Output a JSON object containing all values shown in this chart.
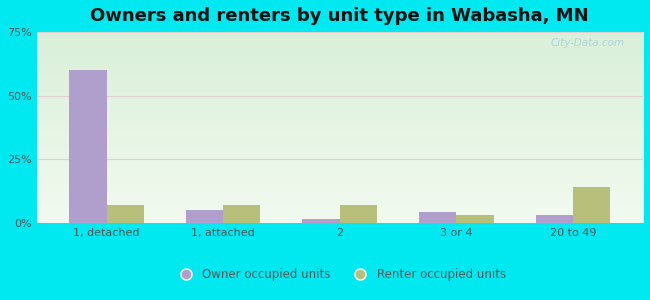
{
  "title": "Owners and renters by unit type in Wabasha, MN",
  "categories": [
    "1, detached",
    "1, attached",
    "2",
    "3 or 4",
    "20 to 49"
  ],
  "owner_values": [
    60,
    5,
    1.5,
    4.5,
    3
  ],
  "renter_values": [
    7,
    7,
    7,
    3,
    14
  ],
  "owner_color": "#b09fcc",
  "renter_color": "#b8bf7a",
  "ylim": [
    0,
    75
  ],
  "yticks": [
    0,
    25,
    50,
    75
  ],
  "ytick_labels": [
    "0%",
    "25%",
    "50%",
    "75%"
  ],
  "background_outer": "#00e8f0",
  "title_fontsize": 13,
  "legend_labels": [
    "Owner occupied units",
    "Renter occupied units"
  ],
  "bar_width": 0.32,
  "watermark": "City-Data.com"
}
